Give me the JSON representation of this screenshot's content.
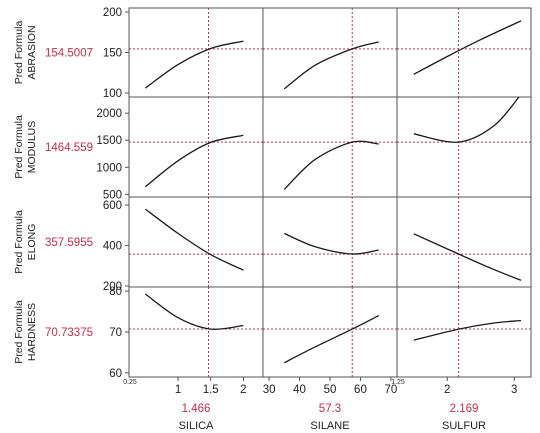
{
  "chart_data": {
    "type": "line",
    "factors": [
      {
        "name": "SILICA",
        "current": 1.466,
        "current_label": "1.466",
        "xlim": [
          0.25,
          2.3
        ],
        "ticks": [
          {
            "v": 0.25,
            "label": "0.25",
            "small": true
          },
          {
            "v": 1,
            "label": "1"
          },
          {
            "v": 1.5,
            "label": "1.5"
          },
          {
            "v": 2,
            "label": "2"
          }
        ]
      },
      {
        "name": "SILANE",
        "current": 57.3,
        "current_label": "57.3",
        "xlim": [
          28,
          72
        ],
        "ticks": [
          {
            "v": 30,
            "label": "30"
          },
          {
            "v": 40,
            "label": "40"
          },
          {
            "v": 50,
            "label": "50"
          },
          {
            "v": 60,
            "label": "60"
          },
          {
            "v": 70,
            "label": "70"
          }
        ]
      },
      {
        "name": "SULFUR",
        "current": 2.169,
        "current_label": "2.169",
        "xlim": [
          1.25,
          3.25
        ],
        "ticks": [
          {
            "v": 1.25,
            "label": "1.25",
            "small": true
          },
          {
            "v": 2,
            "label": "2"
          },
          {
            "v": 3,
            "label": "3"
          }
        ]
      }
    ],
    "responses": [
      {
        "label_line1": "Pred Formula",
        "label_line2": "ABRASION",
        "current": 154.5007,
        "current_label": "154.5007",
        "ylim": [
          95,
          205
        ],
        "ticks": [
          100,
          150,
          200
        ]
      },
      {
        "label_line1": "Pred Formula",
        "label_line2": "MODULUS",
        "current": 1464.559,
        "current_label": "1464.559",
        "ylim": [
          450,
          2300
        ],
        "ticks": [
          500,
          1000,
          1500,
          2000
        ]
      },
      {
        "label_line1": "Pred Formula",
        "label_line2": "ELONG",
        "current": 357.5955,
        "current_label": "357.5955",
        "ylim": [
          195,
          640
        ],
        "ticks": [
          200,
          400,
          600
        ]
      },
      {
        "label_line1": "Pred Formula",
        "label_line2": "HARDNESS",
        "current": 70.73375,
        "current_label": "70.73375",
        "ylim": [
          59,
          81
        ],
        "ticks": [
          60,
          70,
          80
        ]
      }
    ],
    "curves": [
      [
        {
          "x": [
            0.5,
            1.0,
            1.5,
            2.0
          ],
          "y": [
            106,
            135,
            155,
            164
          ]
        },
        {
          "x": [
            35,
            45,
            57.3,
            66
          ],
          "y": [
            105,
            134,
            154.5,
            163
          ]
        },
        {
          "x": [
            1.5,
            2.0,
            2.5,
            3.1
          ],
          "y": [
            123,
            145,
            166,
            189
          ]
        }
      ],
      [
        {
          "x": [
            0.5,
            1.0,
            1.5,
            2.0
          ],
          "y": [
            640,
            1120,
            1460,
            1590
          ]
        },
        {
          "x": [
            35,
            45,
            57.3,
            66
          ],
          "y": [
            590,
            1140,
            1465,
            1430
          ]
        },
        {
          "x": [
            1.5,
            2.169,
            2.7,
            3.1
          ],
          "y": [
            1620,
            1465,
            1770,
            2350
          ]
        }
      ],
      [
        {
          "x": [
            0.5,
            1.0,
            1.5,
            2.0
          ],
          "y": [
            580,
            460,
            355,
            278
          ]
        },
        {
          "x": [
            35,
            45,
            57.3,
            66
          ],
          "y": [
            460,
            395,
            358,
            378
          ]
        },
        {
          "x": [
            1.5,
            2.169,
            2.6,
            3.1
          ],
          "y": [
            458,
            358,
            295,
            228
          ]
        }
      ],
      [
        {
          "x": [
            0.5,
            1.0,
            1.5,
            2.0
          ],
          "y": [
            79.3,
            73.5,
            70.7,
            71.6
          ]
        },
        {
          "x": [
            35,
            45,
            57.3,
            66
          ],
          "y": [
            62.5,
            66.3,
            70.7,
            74.0
          ]
        },
        {
          "x": [
            1.5,
            2.169,
            2.7,
            3.1
          ],
          "y": [
            68.0,
            70.7,
            72.2,
            72.8
          ]
        }
      ]
    ],
    "colors": {
      "curve": "#1a1a1a",
      "reference": "#c0304a",
      "axis": "#555555",
      "value": "#c0304a"
    }
  }
}
